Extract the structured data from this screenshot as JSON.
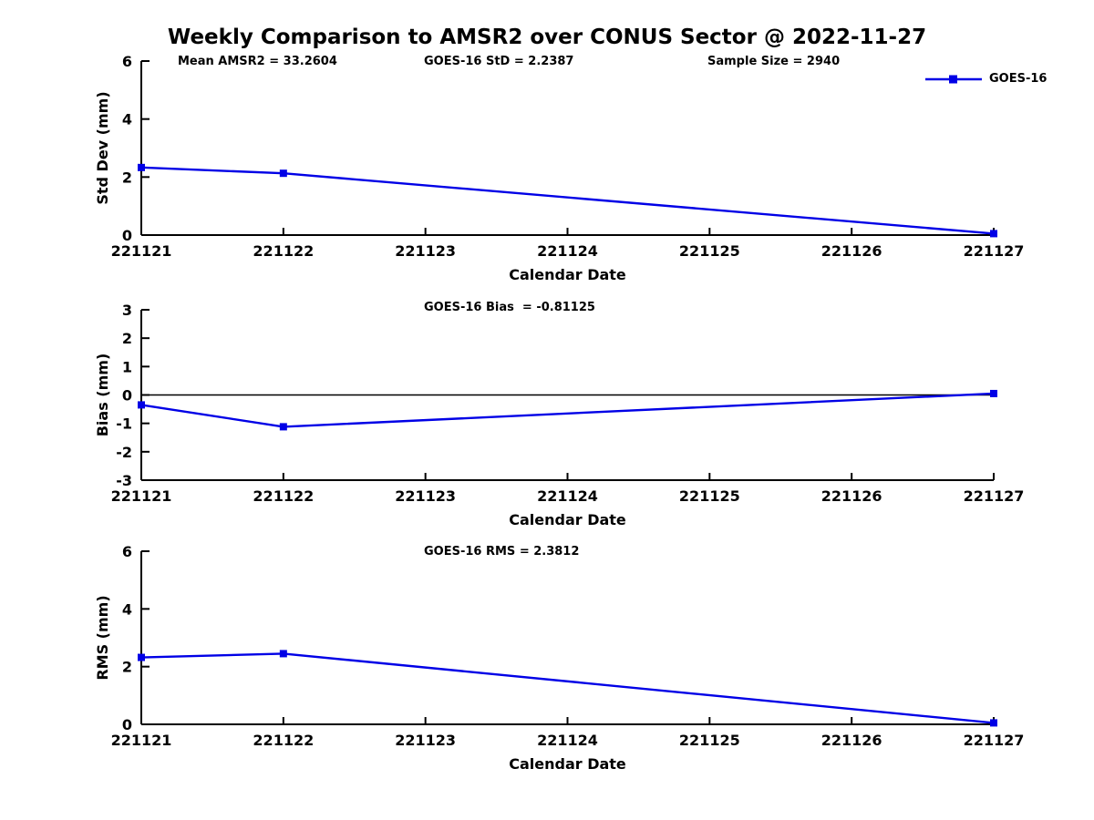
{
  "title": "Weekly Comparison to AMSR2 over CONUS Sector @ 2022-11-27",
  "legend": {
    "label": "GOES-16"
  },
  "colors": {
    "line": "#0000e6",
    "axis": "#000000"
  },
  "chart_data": [
    {
      "type": "line",
      "name": "std-dev",
      "ylabel": "Std Dev (mm)",
      "xlabel": "Calendar Date",
      "ylim": [
        0,
        6
      ],
      "yticks": [
        "0",
        "2",
        "4",
        "6"
      ],
      "xticklabels": [
        "221121",
        "221122",
        "221123",
        "221124",
        "221125",
        "221126",
        "221127"
      ],
      "zero_line": false,
      "series": [
        {
          "name": "GOES-16",
          "x": [
            "221121",
            "221122",
            "221127"
          ],
          "values": [
            2.33,
            2.13,
            0.05
          ]
        }
      ],
      "annotations": [
        {
          "text": "Mean AMSR2 = 33.2604"
        },
        {
          "text": "GOES-16 StD = 2.2387"
        },
        {
          "text": "Sample Size = 2940"
        }
      ]
    },
    {
      "type": "line",
      "name": "bias",
      "ylabel": "Bias (mm)",
      "xlabel": "Calendar Date",
      "ylim": [
        -3,
        3
      ],
      "yticks": [
        "-3",
        "-2",
        "-1",
        "0",
        "1",
        "2",
        "3"
      ],
      "xticklabels": [
        "221121",
        "221122",
        "221123",
        "221124",
        "221125",
        "221126",
        "221127"
      ],
      "zero_line": true,
      "series": [
        {
          "name": "GOES-16",
          "x": [
            "221121",
            "221122",
            "221127"
          ],
          "values": [
            -0.35,
            -1.12,
            0.05
          ]
        }
      ],
      "annotations": [
        {
          "text": "GOES-16 Bias  = -0.81125"
        }
      ]
    },
    {
      "type": "line",
      "name": "rms",
      "ylabel": "RMS (mm)",
      "xlabel": "Calendar Date",
      "ylim": [
        0,
        6
      ],
      "yticks": [
        "0",
        "2",
        "4",
        "6"
      ],
      "xticklabels": [
        "221121",
        "221122",
        "221123",
        "221124",
        "221125",
        "221126",
        "221127"
      ],
      "zero_line": false,
      "series": [
        {
          "name": "GOES-16",
          "x": [
            "221121",
            "221122",
            "221127"
          ],
          "values": [
            2.32,
            2.45,
            0.05
          ]
        }
      ],
      "annotations": [
        {
          "text": "GOES-16 RMS = 2.3812"
        }
      ]
    }
  ]
}
